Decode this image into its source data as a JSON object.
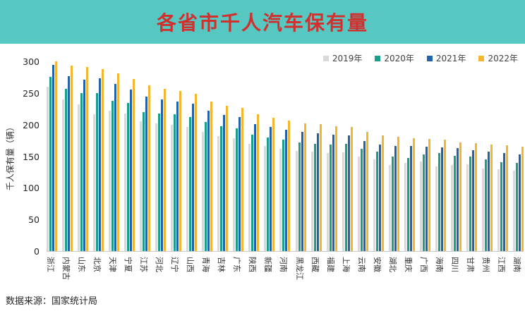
{
  "banner": {
    "title": "各省市千人汽车保有量",
    "bg_color": "#57c7c2",
    "title_color": "#d0302e"
  },
  "footer": {
    "source": "数据来源：国家统计局"
  },
  "chart_data": {
    "type": "bar",
    "title": "各省市千人汽车保有量",
    "xlabel": "",
    "ylabel": "千人保有量（辆）",
    "ylim": [
      0,
      300
    ],
    "yticks": [
      0,
      50,
      100,
      150,
      200,
      250,
      300
    ],
    "grid": false,
    "legend_position": "top-right",
    "categories": [
      "浙江",
      "内蒙古",
      "山东",
      "北京",
      "天津",
      "宁夏",
      "江苏",
      "河北",
      "辽宁",
      "山西",
      "青海",
      "吉林",
      "广东",
      "陕西",
      "新疆",
      "河南",
      "黑龙江",
      "西藏",
      "福建",
      "上海",
      "云南",
      "安徽",
      "湖北",
      "重庆",
      "广西",
      "海南",
      "四川",
      "甘肃",
      "贵州",
      "江西",
      "湖南"
    ],
    "series": [
      {
        "name": "2019年",
        "color": "#d9d9d9",
        "values": [
          260,
          240,
          232,
          216,
          222,
          218,
          205,
          202,
          200,
          196,
          188,
          182,
          178,
          170,
          166,
          162,
          158,
          157,
          155,
          156,
          150,
          145,
          136,
          139,
          142,
          134,
          136,
          137,
          130,
          129,
          127
        ]
      },
      {
        "name": "2020年",
        "color": "#1a9e8c",
        "values": [
          276,
          257,
          250,
          250,
          238,
          234,
          220,
          218,
          216,
          212,
          204,
          198,
          194,
          184,
          180,
          176,
          172,
          170,
          169,
          170,
          162,
          157,
          149,
          147,
          153,
          155,
          151,
          150,
          145,
          141,
          139
        ]
      },
      {
        "name": "2021年",
        "color": "#2162a8",
        "values": [
          294,
          277,
          271,
          273,
          264,
          255,
          244,
          240,
          236,
          233,
          222,
          215,
          212,
          201,
          196,
          192,
          188,
          186,
          184,
          183,
          174,
          169,
          166,
          166,
          165,
          164,
          163,
          160,
          157,
          155,
          153
        ]
      },
      {
        "name": "2022年",
        "color": "#f5b52e",
        "values": [
          300,
          293,
          291,
          288,
          281,
          272,
          262,
          257,
          253,
          249,
          237,
          230,
          227,
          216,
          211,
          206,
          202,
          201,
          198,
          196,
          188,
          183,
          181,
          178,
          177,
          176,
          172,
          171,
          168,
          167,
          165
        ]
      }
    ]
  }
}
